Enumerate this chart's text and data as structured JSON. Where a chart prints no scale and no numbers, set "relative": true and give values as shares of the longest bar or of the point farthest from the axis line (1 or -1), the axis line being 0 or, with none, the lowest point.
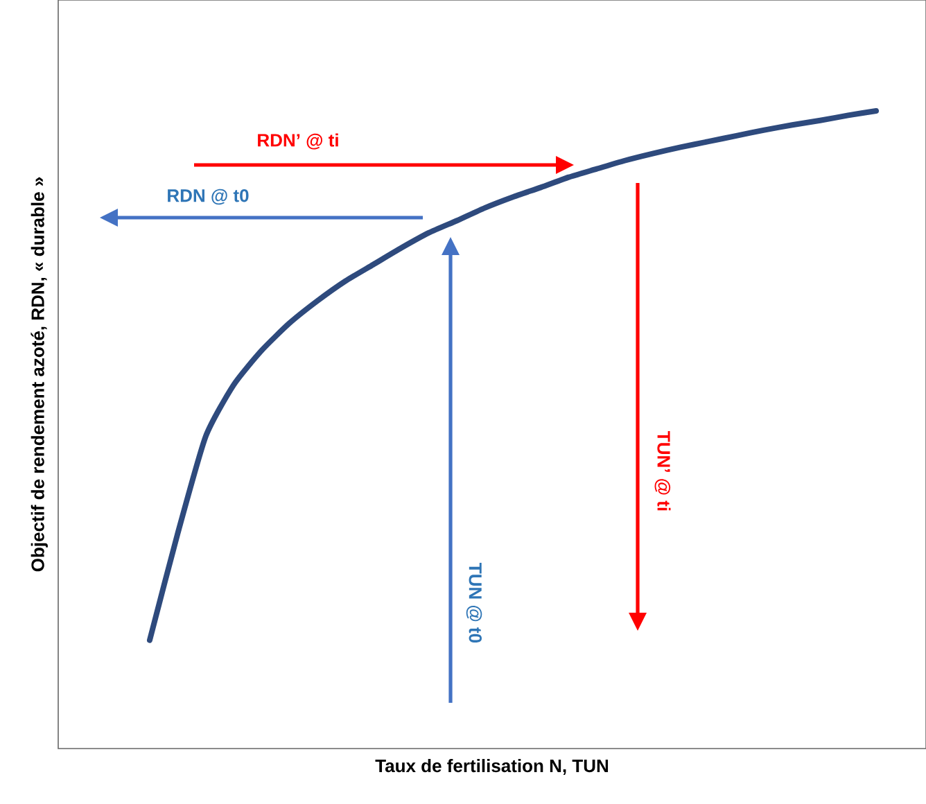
{
  "chart_data": {
    "type": "line",
    "relative": true,
    "xlabel": "Taux de fertilisation N, TUN",
    "ylabel": "Objectif de rendement azoté, RDN, « durable »",
    "categories": [
      null,
      null,
      null,
      null,
      null,
      null,
      null,
      null,
      null,
      null,
      null,
      null,
      null,
      null,
      null,
      null,
      null,
      null,
      null,
      null,
      null,
      null,
      null,
      null,
      null,
      null,
      null
    ],
    "color": "#2e4a7d",
    "values": [
      0.17,
      0.337,
      0.489,
      0.57,
      0.624,
      0.667,
      0.702,
      0.733,
      0.759,
      0.785,
      0.809,
      0.828,
      0.848,
      0.865,
      0.88,
      0.896,
      0.909,
      0.922,
      0.933,
      0.943,
      0.952,
      0.961,
      0.97,
      0.978,
      0.985,
      0.993,
      1.0
    ],
    "annotations": [
      "RDN’ @ ti",
      "RDN @ t0",
      "TUN @ t0",
      "TUN’ @ ti"
    ]
  }
}
